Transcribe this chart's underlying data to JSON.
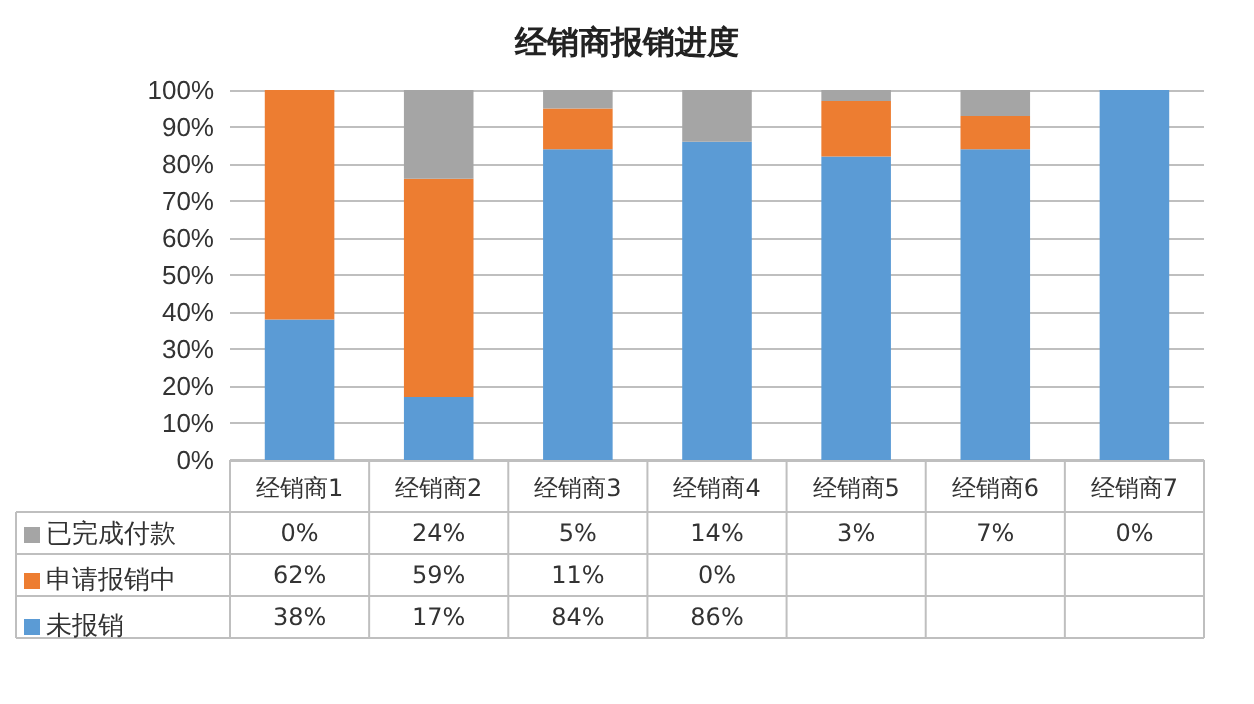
{
  "chart_data": {
    "type": "bar",
    "title": "经销商报销进度",
    "stacked": true,
    "categories": [
      "经销商1",
      "经销商2",
      "经销商3",
      "经销商4",
      "经销商5",
      "经销商6",
      "经销商7"
    ],
    "series": [
      {
        "name": "未报销",
        "color": "#5b9bd5",
        "values": [
          38,
          17,
          84,
          86,
          82,
          84,
          100
        ],
        "value_labels": [
          "38%",
          "17%",
          "84%",
          "86%",
          null,
          null,
          null
        ]
      },
      {
        "name": "申请报销中",
        "color": "#ed7d31",
        "values": [
          62,
          59,
          11,
          0,
          15,
          9,
          0
        ],
        "value_labels": [
          "62%",
          "59%",
          "11%",
          "0%",
          null,
          null,
          null
        ]
      },
      {
        "name": "已完成付款",
        "color": "#a5a5a5",
        "values": [
          0,
          24,
          5,
          14,
          3,
          7,
          0
        ],
        "value_labels": [
          "0%",
          "24%",
          "5%",
          "14%",
          "3%",
          "7%",
          "0%"
        ]
      }
    ],
    "ylim": [
      0,
      100
    ],
    "yticks": [
      {
        "value": 0,
        "label": "0%"
      },
      {
        "value": 10,
        "label": "10%"
      },
      {
        "value": 20,
        "label": "20%"
      },
      {
        "value": 30,
        "label": "30%"
      },
      {
        "value": 40,
        "label": "40%"
      },
      {
        "value": 50,
        "label": "50%"
      },
      {
        "value": 60,
        "label": "60%"
      },
      {
        "value": 70,
        "label": "70%"
      },
      {
        "value": 80,
        "label": "80%"
      },
      {
        "value": 90,
        "label": "90%"
      },
      {
        "value": 100,
        "label": "100%"
      }
    ],
    "grid": "y",
    "legend": "bottom left"
  }
}
